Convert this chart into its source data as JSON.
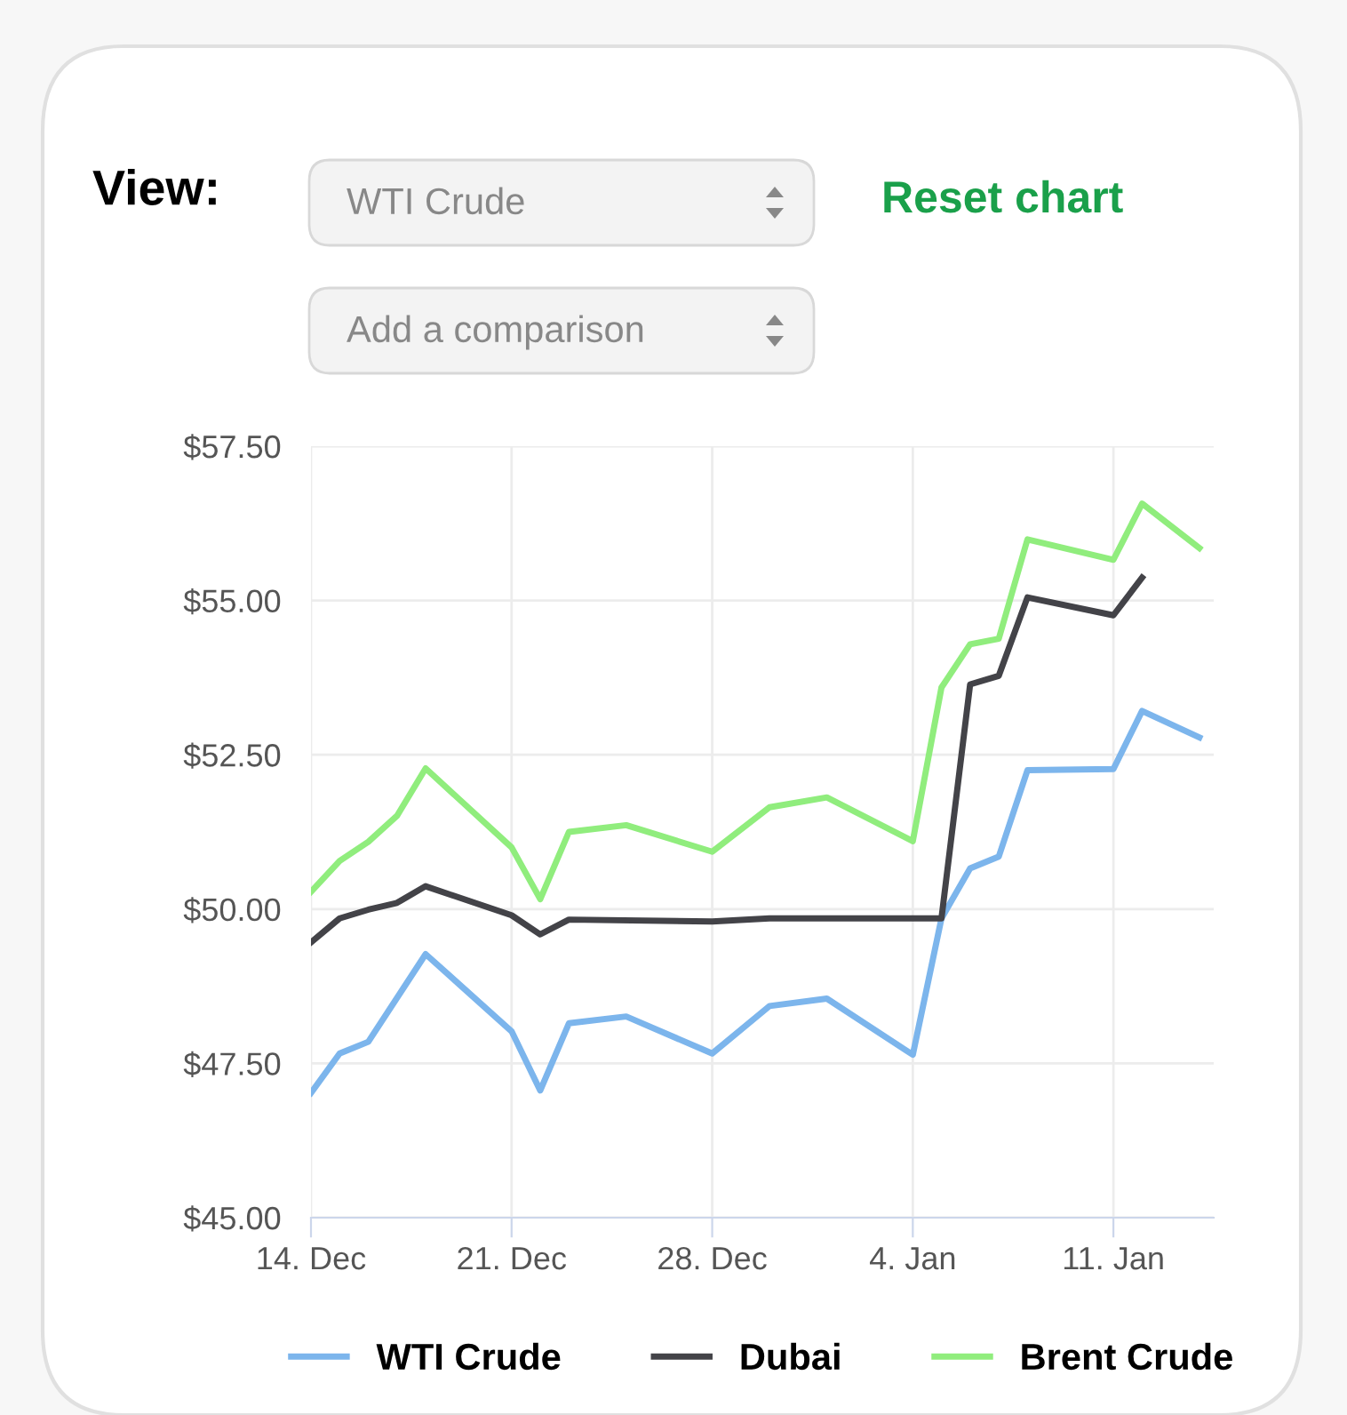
{
  "chart_data": {
    "type": "line",
    "annotations": [
      "View:",
      "WTI Crude",
      "Reset chart",
      "Add a comparison"
    ],
    "categories": [
      "14. Dec",
      null,
      null,
      null,
      null,
      null,
      null,
      "21. Dec",
      null,
      null,
      null,
      null,
      null,
      null,
      "28. Dec",
      null,
      null,
      null,
      null,
      null,
      null,
      "4. Jan",
      null,
      null,
      null,
      null,
      null,
      null,
      "11. Jan",
      null,
      null,
      null
    ],
    "series": [
      {
        "name": "WTI Crude",
        "color": "#7cb5ec",
        "values": [
          47.02,
          47.66,
          47.85,
          null,
          49.27,
          null,
          null,
          48.02,
          47.06,
          48.15,
          null,
          48.26,
          null,
          null,
          47.66,
          null,
          48.43,
          null,
          48.55,
          null,
          null,
          47.64,
          49.85,
          50.66,
          50.85,
          52.25,
          null,
          null,
          52.27,
          53.21,
          null,
          52.78
        ]
      },
      {
        "name": "Dubai",
        "color": "#434348",
        "values": [
          49.46,
          49.85,
          49.99,
          50.1,
          50.37,
          null,
          null,
          49.9,
          49.59,
          49.83,
          null,
          null,
          null,
          null,
          49.8,
          null,
          49.85,
          null,
          null,
          null,
          null,
          null,
          49.85,
          53.64,
          53.78,
          55.05,
          null,
          null,
          54.76,
          55.37,
          null,
          null
        ]
      },
      {
        "name": "Brent Crude",
        "color": "#90ed7d",
        "values": [
          50.28,
          50.78,
          51.09,
          51.51,
          52.28,
          null,
          null,
          51.0,
          50.16,
          51.25,
          null,
          51.36,
          null,
          null,
          50.93,
          null,
          51.65,
          null,
          51.81,
          null,
          null,
          51.1,
          53.59,
          54.29,
          54.38,
          55.99,
          null,
          null,
          55.66,
          56.57,
          null,
          55.85
        ]
      }
    ],
    "ylim": [
      45,
      57.5
    ],
    "yticks": [
      {
        "value": 45,
        "label": "$45.00"
      },
      {
        "value": 47.5,
        "label": "$47.50"
      },
      {
        "value": 50,
        "label": "$50.00"
      },
      {
        "value": 52.5,
        "label": "$52.50"
      },
      {
        "value": 55,
        "label": "$55.00"
      },
      {
        "value": 57.5,
        "label": "$57.50"
      }
    ],
    "grid": true,
    "legend": "bottom",
    "marker": "none",
    "line_style": "solid"
  }
}
